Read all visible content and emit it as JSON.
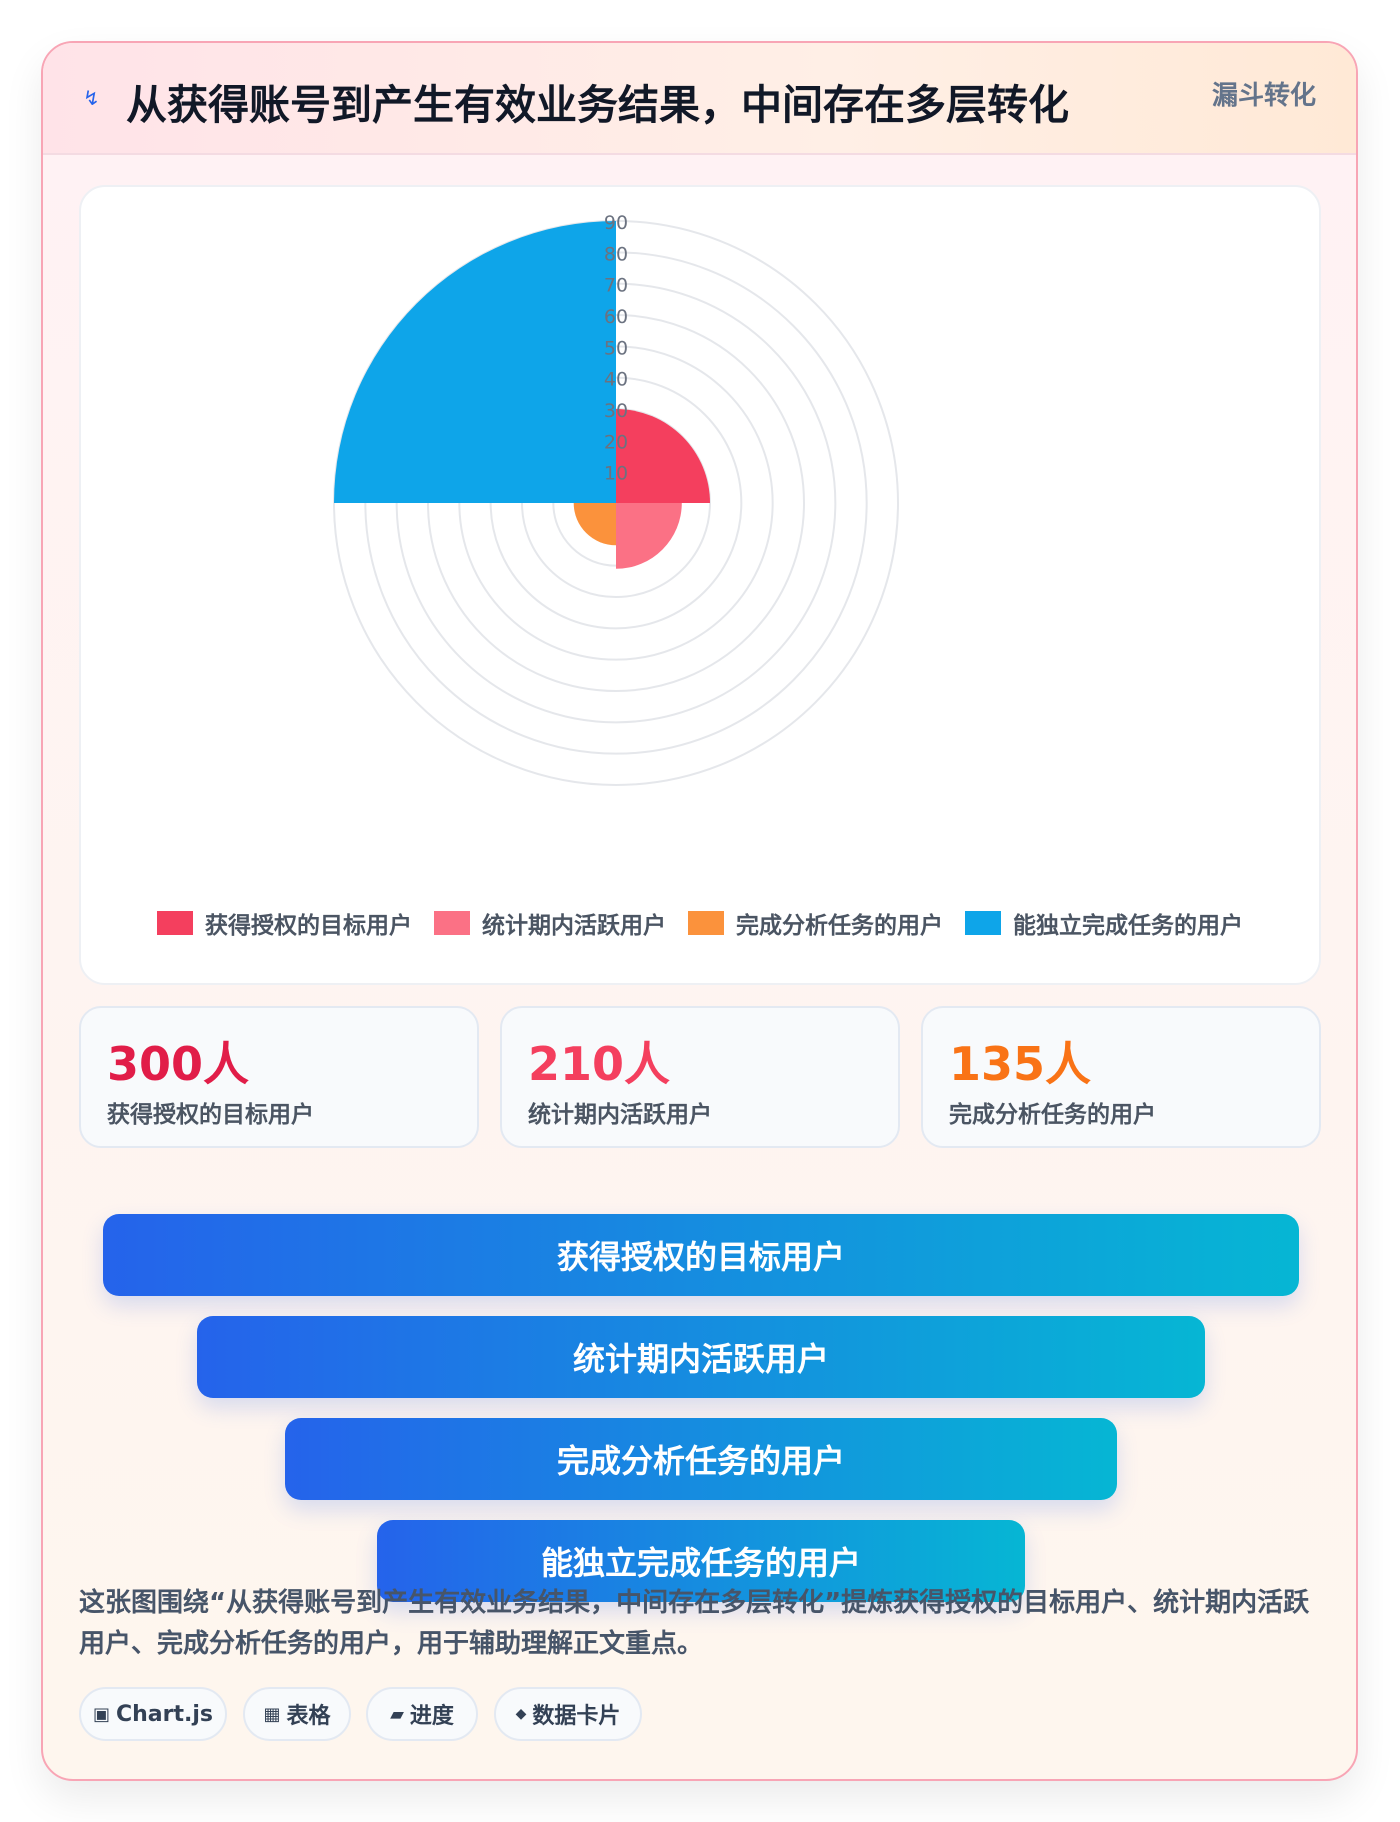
{
  "header": {
    "icon": "lightning-icon",
    "title": "从获得账号到产生有效业务结果，中间存在多层转化",
    "tag": "漏斗转化"
  },
  "chart_data": {
    "type": "polarArea",
    "categories": [
      "获得授权的目标用户",
      "统计期内活跃用户",
      "完成分析任务的用户",
      "能独立完成任务的用户"
    ],
    "values": [
      30,
      21,
      13.5,
      90
    ],
    "colors": [
      "#f43f5e",
      "#fb7185",
      "#fb923c",
      "#0ea5e9"
    ],
    "rlim": [
      0,
      90
    ],
    "rticks": [
      0,
      10,
      20,
      30,
      40,
      50,
      60,
      70,
      80,
      90
    ],
    "grid": true,
    "legend": "bottom"
  },
  "stats": [
    {
      "value": "300人",
      "label": "获得授权的目标用户",
      "color": "#e11d48"
    },
    {
      "value": "210人",
      "label": "统计期内活跃用户",
      "color": "#f43f5e"
    },
    {
      "value": "135人",
      "label": "完成分析任务的用户",
      "color": "#f97316"
    }
  ],
  "funnel": [
    "获得授权的目标用户",
    "统计期内活跃用户",
    "完成分析任务的用户",
    "能独立完成任务的用户"
  ],
  "description": "这张图围绕“从获得账号到产生有效业务结果，中间存在多层转化”提炼获得授权的目标用户、统计期内活跃用户、完成分析任务的用户，用于辅助理解正文重点。",
  "chips": [
    {
      "icon": "square-icon",
      "glyph": "▣",
      "label": "Chart.js"
    },
    {
      "icon": "table-icon",
      "glyph": "▦",
      "label": "表格"
    },
    {
      "icon": "progress-icon",
      "glyph": "▰",
      "label": "进度"
    },
    {
      "icon": "diamond-icon",
      "glyph": "◆",
      "label": "数据卡片"
    }
  ]
}
